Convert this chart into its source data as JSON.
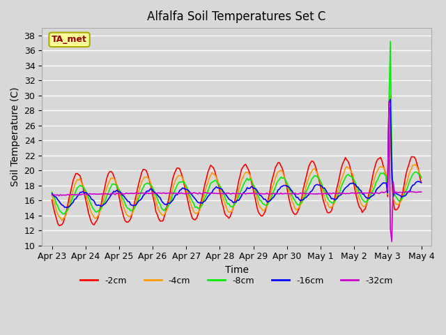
{
  "title": "Alfalfa Soil Temperatures Set C",
  "xlabel": "Time",
  "ylabel": "Soil Temperature (C)",
  "ylim": [
    10,
    39
  ],
  "yticks": [
    10,
    12,
    14,
    16,
    18,
    20,
    22,
    24,
    26,
    28,
    30,
    32,
    34,
    36,
    38
  ],
  "bg_color": "#d8d8d8",
  "grid_color": "#ffffff",
  "annotation_label": "TA_met",
  "annotation_bg": "#ffff99",
  "annotation_border": "#aaaa00",
  "annotation_text_color": "#990000",
  "series_colors": {
    "-2cm": "#ff0000",
    "-4cm": "#ff9900",
    "-8cm": "#00ee00",
    "-16cm": "#0000ff",
    "-32cm": "#cc00cc"
  },
  "legend_entries": [
    "-2cm",
    "-4cm",
    "-8cm",
    "-16cm",
    "-32cm"
  ],
  "x_tick_labels": [
    "Apr 23",
    "Apr 24",
    "Apr 25",
    "Apr 26",
    "Apr 27",
    "Apr 28",
    "Apr 29",
    "Apr 30",
    "May 1",
    "May 2",
    "May 3",
    "May 4"
  ],
  "xlim": [
    -0.3,
    11.3
  ]
}
